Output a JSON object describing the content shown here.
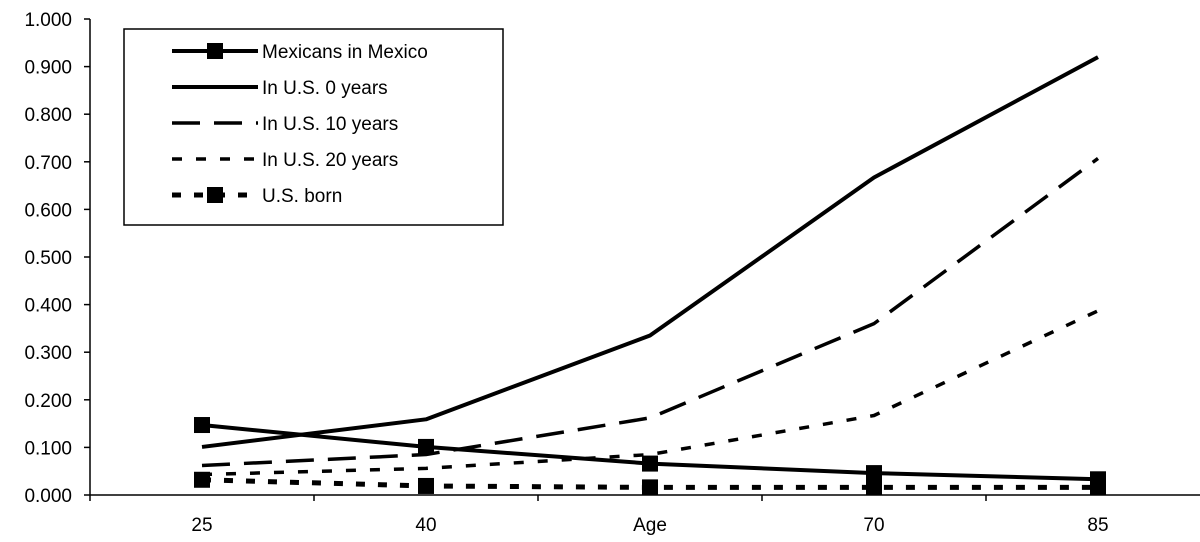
{
  "chart_data": {
    "type": "line",
    "title": "",
    "xlabel": "",
    "ylabel": "",
    "categories": [
      "25",
      "40",
      "Age",
      "70",
      "85"
    ],
    "ylim": [
      0,
      1
    ],
    "yticks": [
      "0.000",
      "0.100",
      "0.200",
      "0.300",
      "0.400",
      "0.500",
      "0.600",
      "0.700",
      "0.800",
      "0.900",
      "1.000"
    ],
    "grid": false,
    "legend": "top-left",
    "series": [
      {
        "name": "Mexicans in Mexico",
        "values": [
          0.147,
          0.101,
          0.066,
          0.046,
          0.033
        ],
        "line_style": "solid",
        "marker": "square",
        "color": "#000000"
      },
      {
        "name": "In U.S. 0 years",
        "values": [
          0.101,
          0.159,
          0.335,
          0.667,
          0.92
        ],
        "line_style": "solid",
        "marker": "none",
        "color": "#000000"
      },
      {
        "name": "In U.S. 10 years",
        "values": [
          0.062,
          0.085,
          0.162,
          0.36,
          0.707
        ],
        "line_style": "long-dash",
        "marker": "none",
        "color": "#000000"
      },
      {
        "name": "In U.S. 20 years",
        "values": [
          0.043,
          0.056,
          0.085,
          0.167,
          0.387
        ],
        "line_style": "short-dash",
        "marker": "none",
        "color": "#000000"
      },
      {
        "name": "U.S. born",
        "values": [
          0.032,
          0.019,
          0.016,
          0.016,
          0.016
        ],
        "line_style": "dotted",
        "marker": "square",
        "color": "#000000"
      }
    ]
  }
}
